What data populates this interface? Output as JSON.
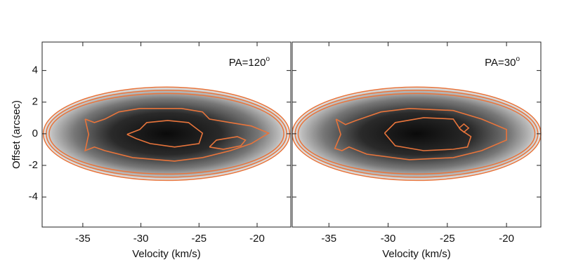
{
  "chart_data": [
    {
      "type": "contour",
      "annotation": "PA=120",
      "annotation_sup": "o",
      "xlabel": "Velocity (km/s)",
      "ylabel": "Offset (arcsec)",
      "color": "#e8743b",
      "xlim": [
        -38.5,
        -17.1
      ],
      "ylim": [
        -5.9,
        5.8
      ],
      "xticks": [
        -35,
        -30,
        -25,
        -20
      ],
      "yticks": [
        4,
        2,
        0,
        -2,
        -4
      ],
      "ellipses": [
        {
          "cx": -27.8,
          "cy": 0,
          "rx": 10.6,
          "ry": 2.95
        },
        {
          "cx": -27.8,
          "cy": 0,
          "rx": 10.35,
          "ry": 2.75
        },
        {
          "cx": -27.8,
          "cy": 0,
          "rx": 10.1,
          "ry": 2.55
        }
      ],
      "contours": [
        {
          "x": [
            -34.8,
            -34.0,
            -33.1,
            -31.9,
            -30.1,
            -26.5,
            -24.7,
            -24.1,
            -22.3,
            -20.5,
            -19.0,
            -20.5,
            -22.3,
            -24.7,
            -27.1,
            -30.7,
            -33.1,
            -34.0,
            -34.8,
            -34.5,
            -34.8
          ],
          "y": [
            0.93,
            0.71,
            0.93,
            1.38,
            1.6,
            1.6,
            1.38,
            0.93,
            0.71,
            0.49,
            0.04,
            -0.62,
            -1.07,
            -1.51,
            -1.73,
            -1.51,
            -1.07,
            -0.84,
            -1.07,
            -0.04,
            0.93
          ]
        },
        {
          "x": [
            -31.2,
            -30.1,
            -29.5,
            -27.7,
            -25.9,
            -24.7,
            -25.0,
            -27.1,
            -29.2,
            -30.4,
            -31.2
          ],
          "y": [
            -0.04,
            0.27,
            0.71,
            0.84,
            0.71,
            0.04,
            -0.62,
            -0.84,
            -0.62,
            -0.31,
            -0.04
          ]
        },
        {
          "x": [
            -24.1,
            -23.5,
            -21.7,
            -21.0,
            -21.4,
            -22.9,
            -24.1
          ],
          "y": [
            -0.84,
            -0.4,
            -0.18,
            -0.4,
            -0.76,
            -0.98,
            -0.84
          ]
        }
      ]
    },
    {
      "type": "contour",
      "annotation": "PA=30",
      "annotation_sup": "o",
      "xlabel": "Velocity (km/s)",
      "color": "#e8743b",
      "xlim": [
        -38.1,
        -17.1
      ],
      "ylim": [
        -5.9,
        5.8
      ],
      "xticks": [
        -35,
        -30,
        -25,
        -20
      ],
      "yticks": [
        4,
        2,
        0,
        -2,
        -4
      ],
      "ellipses": [
        {
          "cx": -27.6,
          "cy": 0,
          "rx": 10.5,
          "ry": 2.95
        },
        {
          "cx": -27.6,
          "cy": 0,
          "rx": 10.25,
          "ry": 2.75
        },
        {
          "cx": -27.6,
          "cy": 0,
          "rx": 10.0,
          "ry": 2.55
        }
      ],
      "contours": [
        {
          "x": [
            -34.4,
            -33.6,
            -32.7,
            -30.6,
            -28.2,
            -24.5,
            -22.1,
            -20.0,
            -20.0,
            -22.1,
            -24.5,
            -28.2,
            -31.8,
            -33.3,
            -33.9,
            -34.5,
            -34.0,
            -34.4
          ],
          "y": [
            0.93,
            0.58,
            0.84,
            1.38,
            1.6,
            1.47,
            0.93,
            0.27,
            -0.4,
            -1.07,
            -1.51,
            -1.64,
            -1.29,
            -0.84,
            -1.07,
            -0.93,
            -0.04,
            0.93
          ]
        },
        {
          "x": [
            -30.3,
            -29.4,
            -27.0,
            -24.5,
            -23.9,
            -23.0,
            -23.3,
            -24.5,
            -27.0,
            -29.4,
            -30.3
          ],
          "y": [
            0.04,
            0.71,
            1.02,
            0.93,
            0.27,
            -0.18,
            -0.84,
            -0.98,
            -1.07,
            -0.76,
            0.04
          ]
        },
        {
          "x": [
            -24.0,
            -23.6,
            -23.2,
            -23.6,
            -24.0
          ],
          "y": [
            0.36,
            0.62,
            0.36,
            0.1,
            0.36
          ]
        }
      ]
    }
  ]
}
